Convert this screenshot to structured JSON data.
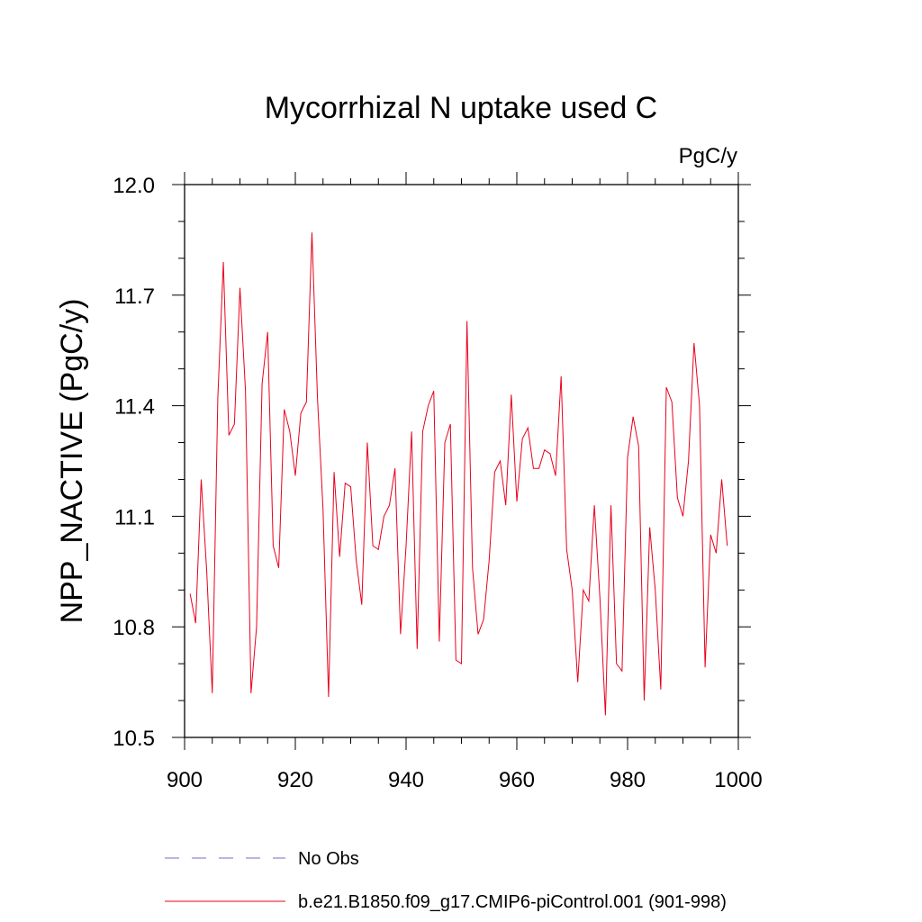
{
  "chart_data": {
    "type": "line",
    "title": "Mycorrhizal N uptake used C",
    "units_label": "PgC/y",
    "xlabel": "",
    "ylabel": "NPP_NACTIVE  (PgC/y)",
    "xlim": [
      900,
      1000
    ],
    "ylim": [
      10.5,
      12.0
    ],
    "x_ticks": [
      900,
      920,
      940,
      960,
      980,
      1000
    ],
    "x_tick_labels": [
      "900",
      "920",
      "940",
      "960",
      "980",
      "1000"
    ],
    "y_ticks": [
      10.5,
      10.8,
      11.1,
      11.4,
      11.7,
      12.0
    ],
    "y_tick_labels": [
      "10.5",
      "10.8",
      "11.1",
      "11.4",
      "11.7",
      "12.0"
    ],
    "series": [
      {
        "name": "No Obs",
        "color": "#7b68c8",
        "style": "dashed",
        "x": [],
        "values": []
      },
      {
        "name": "b.e21.B1850.f09_g17.CMIP6-piControl.001 (901-998)",
        "color": "#e8001c",
        "style": "solid",
        "x": [
          901,
          902,
          903,
          904,
          905,
          906,
          907,
          908,
          909,
          910,
          911,
          912,
          913,
          914,
          915,
          916,
          917,
          918,
          919,
          920,
          921,
          922,
          923,
          924,
          925,
          926,
          927,
          928,
          929,
          930,
          931,
          932,
          933,
          934,
          935,
          936,
          937,
          938,
          939,
          940,
          941,
          942,
          943,
          944,
          945,
          946,
          947,
          948,
          949,
          950,
          951,
          952,
          953,
          954,
          955,
          956,
          957,
          958,
          959,
          960,
          961,
          962,
          963,
          964,
          965,
          966,
          967,
          968,
          969,
          970,
          971,
          972,
          973,
          974,
          975,
          976,
          977,
          978,
          979,
          980,
          981,
          982,
          983,
          984,
          985,
          986,
          987,
          988,
          989,
          990,
          991,
          992,
          993,
          994,
          995,
          996,
          997,
          998
        ],
        "values": [
          10.89,
          10.81,
          11.2,
          10.95,
          10.62,
          11.42,
          11.79,
          11.32,
          11.35,
          11.72,
          11.44,
          10.62,
          10.8,
          11.46,
          11.6,
          11.02,
          10.96,
          11.39,
          11.33,
          11.21,
          11.38,
          11.41,
          11.87,
          11.42,
          11.12,
          10.61,
          11.22,
          10.99,
          11.19,
          11.18,
          10.98,
          10.86,
          11.3,
          11.02,
          11.01,
          11.1,
          11.13,
          11.23,
          10.78,
          11.02,
          11.33,
          10.74,
          11.33,
          11.4,
          11.44,
          10.76,
          11.3,
          11.35,
          10.71,
          10.7,
          11.63,
          10.96,
          10.78,
          10.82,
          10.98,
          11.22,
          11.25,
          11.13,
          11.43,
          11.14,
          11.31,
          11.34,
          11.23,
          11.23,
          11.28,
          11.27,
          11.21,
          11.48,
          11.01,
          10.9,
          10.65,
          10.9,
          10.87,
          11.13,
          10.88,
          10.56,
          11.13,
          10.7,
          10.68,
          11.26,
          11.37,
          11.29,
          10.6,
          11.07,
          10.9,
          10.63,
          11.45,
          11.41,
          11.15,
          11.1,
          11.25,
          11.57,
          11.4,
          10.69,
          11.05,
          11.0,
          11.2,
          11.02
        ]
      }
    ],
    "legend_position": "bottom-center"
  }
}
